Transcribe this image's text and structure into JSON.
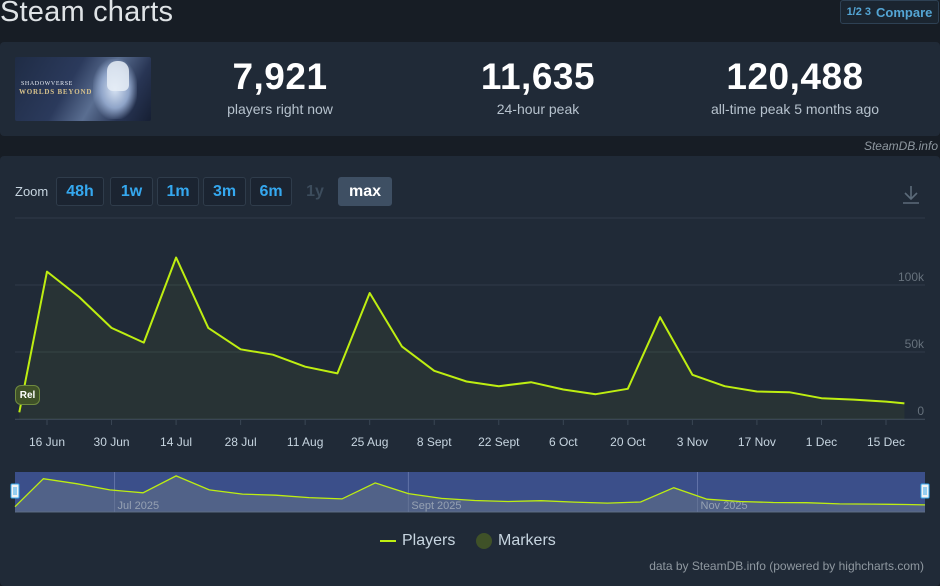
{
  "page": {
    "title": "Steam charts",
    "compare_label": "Compare",
    "compare_icon": "1/2 3"
  },
  "game": {
    "logo_line1": "SHADOWVERSE",
    "logo_line2": "WORLDS BEYOND"
  },
  "stats": [
    {
      "value": "7,921",
      "label": "players right now"
    },
    {
      "value": "11,635",
      "label": "24-hour peak"
    },
    {
      "value": "120,488",
      "label": "all-time peak 5 months ago"
    }
  ],
  "source_credit": "SteamDB.info",
  "zoom": {
    "label": "Zoom",
    "buttons": [
      {
        "label": "48h",
        "state": "enabled"
      },
      {
        "label": "1w",
        "state": "enabled"
      },
      {
        "label": "1m",
        "state": "enabled"
      },
      {
        "label": "3m",
        "state": "enabled"
      },
      {
        "label": "6m",
        "state": "enabled"
      },
      {
        "label": "1y",
        "state": "disabled"
      },
      {
        "label": "max",
        "state": "active"
      }
    ]
  },
  "chart_data": {
    "type": "line",
    "title": "",
    "xlabel": "",
    "ylabel": "",
    "ylim": [
      0,
      150000
    ],
    "yticks": [
      0,
      50000,
      100000
    ],
    "ytick_labels": [
      "0",
      "50k",
      "100k"
    ],
    "x_labels": [
      "16 Jun",
      "30 Jun",
      "14 Jul",
      "28 Jul",
      "11 Aug",
      "25 Aug",
      "8 Sept",
      "22 Sept",
      "6 Oct",
      "20 Oct",
      "3 Nov",
      "17 Nov",
      "1 Dec",
      "15 Dec"
    ],
    "x_label_days": [
      0,
      14,
      28,
      42,
      56,
      70,
      84,
      98,
      112,
      126,
      140,
      154,
      168,
      182
    ],
    "grid": true,
    "series": [
      {
        "name": "Players",
        "color": "#beee11",
        "points": [
          [
            "2025-06-10",
            5000
          ],
          [
            "2025-06-16",
            110000
          ],
          [
            "2025-06-23",
            91000
          ],
          [
            "2025-06-30",
            68000
          ],
          [
            "2025-07-07",
            57000
          ],
          [
            "2025-07-14",
            120488
          ],
          [
            "2025-07-21",
            68000
          ],
          [
            "2025-07-28",
            52000
          ],
          [
            "2025-08-04",
            48000
          ],
          [
            "2025-08-11",
            39000
          ],
          [
            "2025-08-18",
            34000
          ],
          [
            "2025-08-25",
            94000
          ],
          [
            "2025-09-01",
            54000
          ],
          [
            "2025-09-08",
            36000
          ],
          [
            "2025-09-15",
            28000
          ],
          [
            "2025-09-22",
            24500
          ],
          [
            "2025-09-29",
            27500
          ],
          [
            "2025-10-06",
            22000
          ],
          [
            "2025-10-13",
            18500
          ],
          [
            "2025-10-20",
            22500
          ],
          [
            "2025-10-27",
            76000
          ],
          [
            "2025-11-03",
            33000
          ],
          [
            "2025-11-10",
            24500
          ],
          [
            "2025-11-17",
            20500
          ],
          [
            "2025-11-24",
            20000
          ],
          [
            "2025-12-01",
            15500
          ],
          [
            "2025-12-08",
            14500
          ],
          [
            "2025-12-15",
            13000
          ],
          [
            "2025-12-19",
            11635
          ]
        ]
      }
    ],
    "markers": [
      {
        "label": "Rel",
        "date": "2025-06-10"
      }
    ],
    "navigator": {
      "labels": [
        "Jul 2025",
        "Sept 2025",
        "Nov 2025"
      ],
      "label_dates": [
        "2025-07-01",
        "2025-09-01",
        "2025-11-01"
      ],
      "range_start": "2025-06-10",
      "range_end": "2025-12-19"
    },
    "legend": {
      "placement": "bottom-center",
      "items": [
        {
          "name": "Players",
          "color": "#beee11",
          "symbol": "line"
        },
        {
          "name": "Markers",
          "color": "#3f5128",
          "symbol": "circle"
        }
      ]
    }
  },
  "footer_credit": "data by SteamDB.info (powered by highcharts.com)"
}
